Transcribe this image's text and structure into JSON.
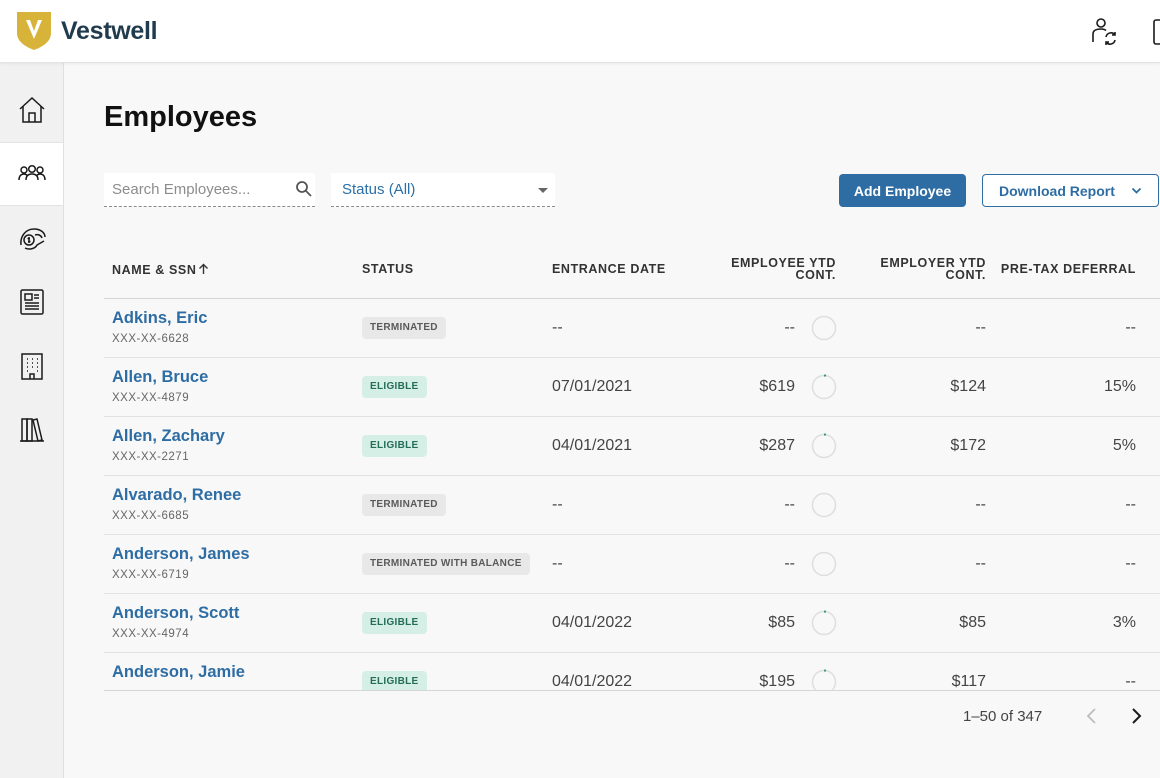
{
  "app": {
    "brand": "Vestwell"
  },
  "colors": {
    "accent": "#2e6da4",
    "brand_gold": "#d8b33a",
    "eligible_bg": "#d5efe6",
    "terminated_bg": "#e8e8e8"
  },
  "top_icons": [
    "user-switch-icon",
    "document-icon"
  ],
  "sidebar": {
    "items": [
      {
        "icon": "home-icon",
        "active": false
      },
      {
        "icon": "people-icon",
        "active": true
      },
      {
        "icon": "hand-money-icon",
        "active": false
      },
      {
        "icon": "report-icon",
        "active": false
      },
      {
        "icon": "building-icon",
        "active": false
      },
      {
        "icon": "books-icon",
        "active": false
      }
    ]
  },
  "page": {
    "title": "Employees"
  },
  "filters": {
    "search_placeholder": "Search Employees...",
    "status_value": "Status (All)"
  },
  "actions": {
    "add_label": "Add Employee",
    "download_label": "Download Report"
  },
  "table": {
    "columns": {
      "name": "NAME & SSN",
      "status": "STATUS",
      "entrance": "ENTRANCE DATE",
      "emp_ytd_1": "EMPLOYEE YTD",
      "emp_ytd_2": "CONT.",
      "er_ytd_1": "EMPLOYER YTD",
      "er_ytd_2": "CONT.",
      "pretax": "PRE-TAX DEFERRAL"
    },
    "rows": [
      {
        "name": "Adkins, Eric",
        "ssn": "XXX-XX-6628",
        "status": "TERMINATED",
        "status_type": "terminated",
        "entrance": "--",
        "employee_ytd": "--",
        "employer_ytd": "--",
        "pretax": "--"
      },
      {
        "name": "Allen, Bruce",
        "ssn": "XXX-XX-4879",
        "status": "ELIGIBLE",
        "status_type": "eligible",
        "entrance": "07/01/2021",
        "employee_ytd": "$619",
        "employer_ytd": "$124",
        "pretax": "15%"
      },
      {
        "name": "Allen, Zachary",
        "ssn": "XXX-XX-2271",
        "status": "ELIGIBLE",
        "status_type": "eligible",
        "entrance": "04/01/2021",
        "employee_ytd": "$287",
        "employer_ytd": "$172",
        "pretax": "5%"
      },
      {
        "name": "Alvarado, Renee",
        "ssn": "XXX-XX-6685",
        "status": "TERMINATED",
        "status_type": "terminated",
        "entrance": "--",
        "employee_ytd": "--",
        "employer_ytd": "--",
        "pretax": "--"
      },
      {
        "name": "Anderson, James",
        "ssn": "XXX-XX-6719",
        "status": "TERMINATED WITH BALANCE",
        "status_type": "terminated",
        "entrance": "--",
        "employee_ytd": "--",
        "employer_ytd": "--",
        "pretax": "--"
      },
      {
        "name": "Anderson, Scott",
        "ssn": "XXX-XX-4974",
        "status": "ELIGIBLE",
        "status_type": "eligible",
        "entrance": "04/01/2022",
        "employee_ytd": "$85",
        "employer_ytd": "$85",
        "pretax": "3%"
      },
      {
        "name": "Anderson, Jamie",
        "ssn": "",
        "status": "ELIGIBLE",
        "status_type": "eligible",
        "entrance": "04/01/2022",
        "employee_ytd": "$195",
        "employer_ytd": "$117",
        "pretax": "--"
      }
    ]
  },
  "pagination": {
    "range_text": "1–50 of 347"
  }
}
